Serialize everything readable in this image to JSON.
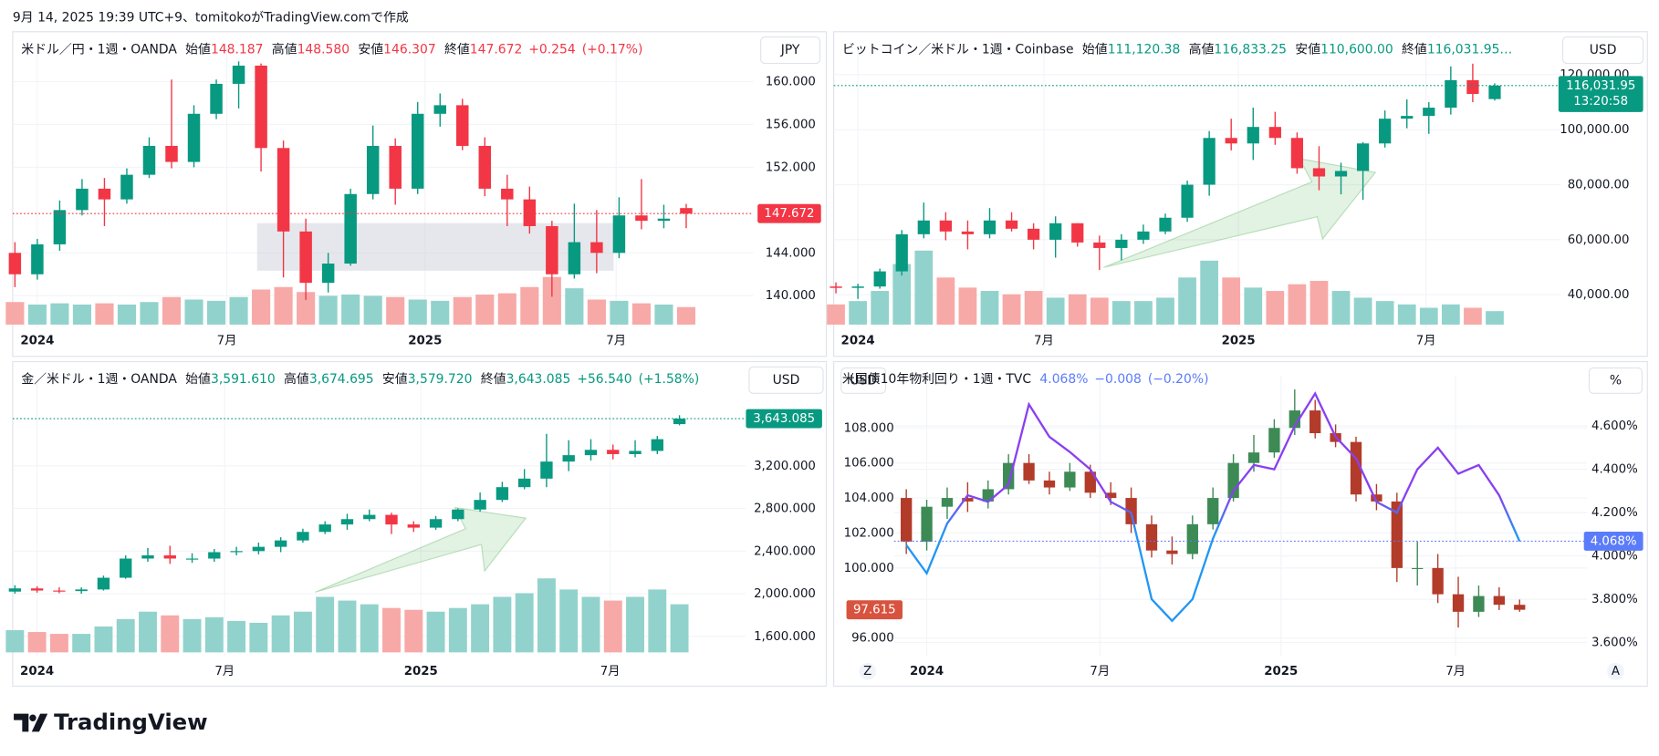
{
  "caption": "9月 14, 2025 19:39 UTC+9、tomitokoがTradingView.comで作成",
  "footer": "TradingView",
  "chart_data": [
    {
      "type": "candlestick",
      "title": "米ドル／円・1週・OANDA",
      "unit": "JPY",
      "header_color": "#f23645",
      "legend": [
        {
          "name": "始値",
          "value": 148.187,
          "label": "148.187"
        },
        {
          "name": "高値",
          "value": 148.58,
          "label": "148.580"
        },
        {
          "name": "安値",
          "value": 146.307,
          "label": "146.307"
        },
        {
          "name": "終値",
          "value": 147.672,
          "label": "147.672"
        }
      ],
      "change": [
        {
          "value": 0.254,
          "label": "+0.254"
        },
        {
          "value": 0.17,
          "label": "(+0.17%)"
        }
      ],
      "up_color": "#089981",
      "down_color": "#f23645",
      "volume_up_color": "#92d2cc",
      "volume_down_color": "#f7a9a7",
      "xlim": [
        -0.1,
        33
      ],
      "xticks": [
        {
          "value": 1,
          "label": "2024"
        },
        {
          "value": 9.47,
          "label": "7月"
        },
        {
          "value": 18.33,
          "label": "2025"
        },
        {
          "value": 26.87,
          "label": "7月"
        }
      ],
      "ylim": [
        137,
        162.2
      ],
      "yticks": [
        {
          "value": 140,
          "label": "140.000"
        },
        {
          "value": 144,
          "label": "144.000"
        },
        {
          "value": 152,
          "label": "152.000"
        },
        {
          "value": 156,
          "label": "156.000"
        },
        {
          "value": 160,
          "label": "160.000"
        }
      ],
      "open": [
        144.0,
        142.0,
        144.8,
        148.0,
        150.0,
        149.0,
        151.3,
        154.0,
        152.5,
        157.0,
        159.8,
        161.5,
        153.8,
        146.0,
        141.2,
        143.0,
        149.5,
        154.0,
        150.0,
        157.0,
        157.8,
        154.0,
        150.0,
        149.0,
        146.5,
        142.0,
        145.0,
        144.0,
        147.5,
        147.0,
        148.187
      ],
      "high": [
        145.0,
        145.3,
        148.9,
        150.9,
        151.0,
        151.9,
        154.8,
        160.2,
        157.8,
        160.2,
        161.9,
        161.7,
        154.5,
        147.2,
        144.0,
        150.0,
        155.9,
        154.7,
        158.1,
        158.9,
        158.4,
        154.8,
        151.3,
        150.2,
        147.0,
        148.6,
        148.0,
        149.2,
        150.9,
        148.5,
        148.58
      ],
      "low": [
        140.8,
        141.5,
        144.2,
        147.5,
        146.5,
        148.6,
        151.0,
        151.9,
        152.0,
        156.5,
        157.5,
        151.6,
        141.7,
        139.6,
        140.3,
        142.8,
        149.0,
        148.5,
        149.5,
        155.8,
        153.6,
        149.3,
        146.5,
        145.8,
        139.9,
        141.6,
        142.1,
        143.5,
        146.2,
        146.3,
        146.307
      ],
      "close": [
        142.0,
        144.8,
        148.0,
        150.0,
        149.0,
        151.3,
        154.0,
        152.5,
        157.0,
        159.8,
        161.5,
        153.8,
        146.0,
        141.2,
        143.0,
        149.5,
        154.0,
        150.0,
        157.0,
        157.8,
        154.0,
        150.0,
        149.0,
        146.5,
        142.0,
        145.0,
        144.0,
        147.5,
        147.0,
        147.2,
        147.672
      ],
      "volume": [
        90,
        80,
        85,
        80,
        85,
        80,
        90,
        110,
        100,
        95,
        110,
        140,
        150,
        130,
        115,
        120,
        115,
        110,
        100,
        95,
        110,
        120,
        125,
        150,
        190,
        145,
        100,
        95,
        85,
        80,
        70
      ],
      "last_label": {
        "value": 147.672,
        "label": "147.672",
        "color": "#f23645"
      }
    },
    {
      "type": "candlestick",
      "title": "ビットコイン／米ドル・1週・Coinbase",
      "unit": "USD",
      "header_color": "#089981",
      "legend": [
        {
          "name": "始値",
          "value": 111120.38,
          "label": "111,120.38"
        },
        {
          "name": "高値",
          "value": 116833.25,
          "label": "116,833.25"
        },
        {
          "name": "安値",
          "value": 110600,
          "label": "110,600.00"
        },
        {
          "name": "終値",
          "value": 116031.95,
          "label": "116,031.95…"
        }
      ],
      "change": [],
      "up_color": "#089981",
      "down_color": "#f23645",
      "volume_up_color": "#92d2cc",
      "volume_down_color": "#f7a9a7",
      "xlim": [
        -0.1,
        33
      ],
      "xticks": [
        {
          "value": 1,
          "label": "2024"
        },
        {
          "value": 9.47,
          "label": "7月"
        },
        {
          "value": 18.33,
          "label": "2025"
        },
        {
          "value": 26.87,
          "label": "7月"
        }
      ],
      "ylim": [
        28000,
        126000
      ],
      "yticks": [
        {
          "value": 40000,
          "label": "40,000.00"
        },
        {
          "value": 60000,
          "label": "60,000.00"
        },
        {
          "value": 80000,
          "label": "80,000.00"
        },
        {
          "value": 100000,
          "label": "100,000.00"
        },
        {
          "value": 120000,
          "label": "120,000.00"
        }
      ],
      "open": [
        43000,
        42500,
        43000,
        48500,
        62000,
        67000,
        63000,
        62000,
        67000,
        64000,
        60000,
        66000,
        59000,
        57000,
        60000,
        63000,
        68000,
        80000,
        97000,
        95000,
        101000,
        97000,
        86000,
        83000,
        85000,
        95000,
        104000,
        105000,
        108000,
        118000,
        111120.38
      ],
      "high": [
        44500,
        44000,
        49500,
        63500,
        73500,
        70000,
        67000,
        71500,
        70000,
        66000,
        68500,
        66000,
        61500,
        62000,
        65500,
        69500,
        81500,
        99500,
        104000,
        108000,
        106500,
        99000,
        94000,
        88000,
        95500,
        107000,
        111000,
        110000,
        123000,
        124000,
        116833.25
      ],
      "low": [
        40500,
        38500,
        42200,
        47000,
        60500,
        59800,
        56500,
        60500,
        63000,
        56500,
        53500,
        57500,
        49000,
        52500,
        58500,
        62000,
        66500,
        76000,
        92500,
        89000,
        94500,
        84000,
        78000,
        76500,
        74500,
        93500,
        100500,
        98500,
        105500,
        110000,
        110600
      ],
      "close": [
        42500,
        43000,
        48500,
        62000,
        67000,
        63000,
        62000,
        67000,
        64000,
        60000,
        66000,
        59000,
        57000,
        60000,
        63000,
        68000,
        80000,
        97000,
        95000,
        101000,
        97000,
        86000,
        83000,
        85000,
        95000,
        104000,
        105000,
        108000,
        118000,
        113000,
        116031.95
      ],
      "volume": [
        30,
        35,
        50,
        90,
        110,
        70,
        55,
        50,
        45,
        50,
        40,
        45,
        40,
        35,
        35,
        40,
        70,
        95,
        70,
        55,
        50,
        60,
        65,
        50,
        40,
        35,
        30,
        25,
        30,
        25,
        20
      ],
      "last_label": {
        "value": 116031.95,
        "label": "116,031.95",
        "color": "#089981"
      },
      "countdown": "13:20:58"
    },
    {
      "type": "candlestick",
      "title": "金／米ドル・1週・OANDA",
      "unit": "USD",
      "header_color": "#089981",
      "legend": [
        {
          "name": "始値",
          "value": 3591.61,
          "label": "3,591.610"
        },
        {
          "name": "高値",
          "value": 3674.695,
          "label": "3,674.695"
        },
        {
          "name": "安値",
          "value": 3579.72,
          "label": "3,579.720"
        },
        {
          "name": "終値",
          "value": 3643.085,
          "label": "3,643.085"
        }
      ],
      "change": [
        {
          "value": 56.54,
          "label": "+56.540"
        },
        {
          "value": 1.58,
          "label": "(+1.58%)"
        }
      ],
      "up_color": "#089981",
      "down_color": "#f23645",
      "volume_up_color": "#92d2cc",
      "volume_down_color": "#f7a9a7",
      "xlim": [
        -0.1,
        33
      ],
      "xticks": [
        {
          "value": 1,
          "label": "2024"
        },
        {
          "value": 9.47,
          "label": "7月"
        },
        {
          "value": 18.33,
          "label": "2025"
        },
        {
          "value": 26.87,
          "label": "7月"
        }
      ],
      "ylim": [
        1420,
        3900
      ],
      "yticks": [
        {
          "value": 1600,
          "label": "1,600.000"
        },
        {
          "value": 2000,
          "label": "2,000.000"
        },
        {
          "value": 2400,
          "label": "2,400.000"
        },
        {
          "value": 2800,
          "label": "2,800.000"
        },
        {
          "value": 3200,
          "label": "3,200.000"
        }
      ],
      "open": [
        2020,
        2050,
        2030,
        2025,
        2040,
        2150,
        2330,
        2360,
        2330,
        2330,
        2390,
        2400,
        2440,
        2500,
        2580,
        2650,
        2700,
        2740,
        2650,
        2620,
        2700,
        2790,
        2880,
        3000,
        3080,
        3240,
        3300,
        3350,
        3310,
        3340,
        3591.61
      ],
      "high": [
        2080,
        2070,
        2060,
        2060,
        2170,
        2360,
        2430,
        2450,
        2380,
        2420,
        2440,
        2480,
        2530,
        2610,
        2680,
        2750,
        2790,
        2760,
        2680,
        2730,
        2800,
        2950,
        3050,
        3170,
        3500,
        3440,
        3450,
        3400,
        3440,
        3480,
        3674.695
      ],
      "low": [
        2000,
        2010,
        2005,
        2000,
        2030,
        2140,
        2300,
        2280,
        2290,
        2300,
        2360,
        2370,
        2390,
        2480,
        2560,
        2600,
        2680,
        2560,
        2580,
        2600,
        2680,
        2770,
        2860,
        2980,
        3000,
        3150,
        3250,
        3260,
        3280,
        3310,
        3579.72
      ],
      "close": [
        2050,
        2030,
        2025,
        2040,
        2150,
        2330,
        2360,
        2330,
        2330,
        2390,
        2400,
        2440,
        2500,
        2580,
        2650,
        2700,
        2740,
        2650,
        2620,
        2700,
        2790,
        2880,
        3000,
        3080,
        3240,
        3300,
        3350,
        3310,
        3340,
        3450,
        3643.085
      ],
      "volume": [
        60,
        55,
        50,
        50,
        70,
        90,
        110,
        100,
        90,
        95,
        85,
        80,
        100,
        110,
        150,
        140,
        130,
        120,
        115,
        110,
        120,
        130,
        150,
        160,
        200,
        170,
        150,
        140,
        150,
        170,
        130
      ],
      "last_label": {
        "value": 3643.085,
        "label": "3,643.085",
        "color": "#089981"
      }
    },
    {
      "type": "candlestick",
      "title": "米国債10年物利回り・1週・TVC",
      "unit_left": "USD",
      "unit": "%",
      "header_color": "#5b7cfa",
      "legend": [
        {
          "value": 4.068,
          "label": "4.068%"
        }
      ],
      "change": [
        {
          "value": -0.008,
          "label": "−0.008"
        },
        {
          "value": -0.2,
          "label": "(−0.20%)"
        }
      ],
      "up_color": "#3d8a55",
      "down_color": "#b33b2a",
      "buttons": [
        "Z",
        "A"
      ],
      "xlim": [
        -0.6,
        33.3
      ],
      "xticks": [
        {
          "value": 1,
          "label": "2024"
        },
        {
          "value": 9.47,
          "label": "7月"
        },
        {
          "value": 18.33,
          "label": "2025"
        },
        {
          "value": 26.87,
          "label": "7月"
        }
      ],
      "ylim": [
        95,
        110.4
      ],
      "yticks": [
        {
          "value": 96,
          "label": "96.000"
        },
        {
          "value": 100,
          "label": "100.000"
        },
        {
          "value": 102,
          "label": "102.000"
        },
        {
          "value": 104,
          "label": "104.000"
        },
        {
          "value": 106,
          "label": "106.000"
        },
        {
          "value": 108,
          "label": "108.000"
        }
      ],
      "y2lim": [
        3.54,
        4.785
      ],
      "y2ticks": [
        {
          "value": 3.6,
          "label": "3.600%"
        },
        {
          "value": 3.8,
          "label": "3.800%"
        },
        {
          "value": 4.0,
          "label": "4.000%"
        },
        {
          "value": 4.2,
          "label": "4.200%"
        },
        {
          "value": 4.4,
          "label": "4.400%"
        },
        {
          "value": 4.6,
          "label": "4.600%"
        }
      ],
      "open": [
        104.0,
        101.5,
        103.5,
        104.0,
        103.8,
        104.5,
        106.0,
        105.0,
        104.6,
        105.5,
        104.3,
        104.0,
        102.5,
        101.0,
        100.8,
        102.5,
        104.0,
        106.0,
        106.6,
        108.0,
        109.0,
        107.7,
        107.2,
        104.2,
        103.8,
        100.0,
        100.0,
        98.5,
        97.5,
        98.4,
        97.9
      ],
      "high": [
        104.5,
        103.9,
        104.6,
        104.9,
        105.0,
        106.5,
        106.5,
        105.5,
        106.0,
        105.9,
        104.9,
        104.6,
        103.0,
        101.8,
        103.0,
        104.6,
        106.5,
        107.6,
        108.5,
        110.2,
        109.6,
        108.2,
        107.5,
        104.8,
        104.3,
        101.5,
        100.8,
        99.5,
        99.0,
        98.9,
        98.2
      ],
      "low": [
        100.8,
        101.0,
        102.8,
        103.2,
        103.4,
        104.2,
        104.8,
        104.2,
        104.4,
        104.0,
        103.6,
        102.0,
        100.6,
        100.2,
        100.5,
        102.2,
        103.8,
        105.5,
        106.3,
        107.6,
        107.4,
        106.9,
        103.8,
        103.3,
        99.2,
        99.0,
        98.0,
        96.6,
        97.2,
        97.6,
        97.5
      ],
      "close": [
        101.5,
        103.5,
        104.0,
        103.8,
        104.5,
        106.0,
        105.0,
        104.6,
        105.5,
        104.3,
        104.0,
        102.5,
        101.0,
        100.8,
        102.5,
        104.0,
        106.0,
        106.6,
        108.0,
        109.0,
        107.7,
        107.2,
        104.2,
        103.8,
        100.0,
        100.0,
        98.5,
        97.5,
        98.4,
        97.9,
        97.615
      ],
      "last_label": {
        "value": 97.615,
        "label": "97.615",
        "color": "#d8533f"
      },
      "overlay": {
        "axis": "y2",
        "colors": [
          "#2196f3",
          "#8a3ff0"
        ],
        "values": [
          4.05,
          3.92,
          4.15,
          4.28,
          4.25,
          4.33,
          4.7,
          4.55,
          4.48,
          4.4,
          4.25,
          4.2,
          3.8,
          3.7,
          3.8,
          4.08,
          4.3,
          4.42,
          4.4,
          4.6,
          4.75,
          4.55,
          4.45,
          4.25,
          4.2,
          4.4,
          4.5,
          4.38,
          4.42,
          4.28,
          4.068
        ]
      },
      "y2_last_label": {
        "value": 4.068,
        "label": "4.068%",
        "color": "#5b7cfa"
      }
    }
  ]
}
